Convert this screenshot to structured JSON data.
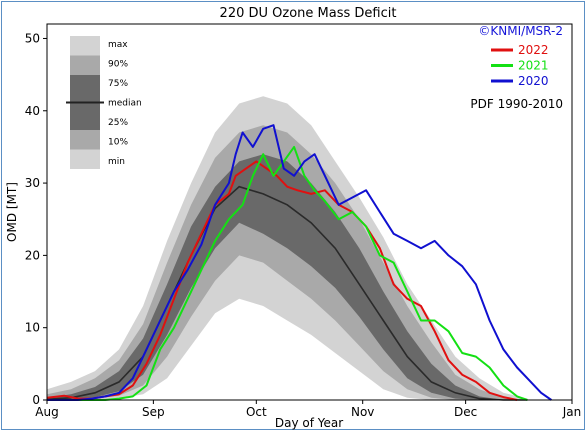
{
  "chart_data": {
    "type": "line",
    "title": "220 DU Ozone Mass Deficit",
    "xlabel": "Day of Year",
    "ylabel": "OMD [MT]",
    "credit": "©KNMI/MSR-2",
    "pdf_label": "PDF 1990-2010",
    "ylim": [
      0,
      52
    ],
    "yticks": [
      0,
      10,
      20,
      30,
      40,
      50
    ],
    "xlim": [
      213,
      366
    ],
    "xticks": [
      {
        "day": 213,
        "label": "Aug"
      },
      {
        "day": 244,
        "label": "Sep"
      },
      {
        "day": 274,
        "label": "Oct"
      },
      {
        "day": 305,
        "label": "Nov"
      },
      {
        "day": 335,
        "label": "Dec"
      },
      {
        "day": 366,
        "label": "Jan"
      }
    ],
    "band_legend": [
      "max",
      "90%",
      "75%",
      "median",
      "25%",
      "10%",
      "min"
    ],
    "bands": {
      "x": [
        213,
        220,
        227,
        234,
        241,
        248,
        255,
        262,
        269,
        276,
        283,
        290,
        297,
        304,
        311,
        318,
        325,
        332,
        339,
        346,
        353
      ],
      "max": [
        1.5,
        2.5,
        4.0,
        7.0,
        13.0,
        22.0,
        30.0,
        37.0,
        41.0,
        42.0,
        41.0,
        38.0,
        33.0,
        28.0,
        22.5,
        16.0,
        11.0,
        6.0,
        3.0,
        1.0,
        0.2
      ],
      "p90": [
        0.8,
        1.5,
        3.0,
        5.5,
        10.5,
        19.0,
        27.0,
        33.5,
        37.0,
        38.0,
        37.0,
        34.0,
        30.0,
        25.0,
        19.0,
        13.0,
        8.0,
        3.5,
        1.5,
        0.3,
        0.0
      ],
      "p75": [
        0.3,
        0.8,
        1.8,
        4.0,
        8.5,
        16.0,
        24.0,
        29.5,
        33.0,
        34.0,
        33.0,
        30.0,
        26.0,
        21.0,
        15.0,
        9.5,
        5.0,
        2.0,
        0.5,
        0.0,
        0.0
      ],
      "median": [
        0.1,
        0.3,
        1.0,
        2.5,
        6.0,
        13.0,
        20.0,
        26.5,
        29.5,
        28.5,
        27.0,
        24.5,
        21.0,
        16.0,
        11.0,
        6.0,
        2.5,
        1.0,
        0.2,
        0.0,
        0.0
      ],
      "p25": [
        0.0,
        0.1,
        0.4,
        1.2,
        3.5,
        9.0,
        15.5,
        21.0,
        24.5,
        23.0,
        21.0,
        18.5,
        15.5,
        11.5,
        7.0,
        3.0,
        1.0,
        0.2,
        0.0,
        0.0,
        0.0
      ],
      "p10": [
        0.0,
        0.0,
        0.2,
        0.6,
        2.0,
        6.0,
        11.5,
        16.5,
        20.0,
        19.0,
        16.5,
        14.0,
        11.0,
        7.5,
        4.0,
        1.5,
        0.3,
        0.0,
        0.0,
        0.0,
        0.0
      ],
      "min": [
        0.0,
        0.0,
        0.0,
        0.2,
        0.8,
        3.0,
        7.5,
        12.0,
        14.0,
        13.0,
        11.0,
        9.0,
        6.5,
        4.0,
        1.5,
        0.3,
        0.0,
        0.0,
        0.0,
        0.0,
        0.0
      ]
    },
    "series": [
      {
        "name": "2022",
        "color": "#e01010",
        "x": [
          213,
          218,
          222,
          226,
          230,
          234,
          238,
          242,
          246,
          250,
          254,
          258,
          262,
          266,
          268,
          271,
          274,
          277,
          280,
          283,
          286,
          290,
          294,
          298,
          302,
          306,
          310,
          314,
          318,
          322,
          326,
          330,
          334,
          338,
          342,
          346,
          350
        ],
        "y": [
          0.3,
          0.6,
          0.2,
          0.2,
          0.5,
          0.8,
          2.0,
          5.0,
          9.0,
          14.0,
          19.0,
          23.0,
          27.0,
          28.5,
          31.0,
          32.0,
          33.0,
          32.0,
          31.0,
          29.5,
          29.0,
          28.5,
          29.0,
          27.0,
          26.0,
          24.0,
          21.0,
          16.0,
          14.0,
          13.0,
          9.5,
          5.5,
          3.5,
          2.5,
          1.0,
          0.4,
          0.0
        ]
      },
      {
        "name": "2021",
        "color": "#14e014",
        "x": [
          213,
          218,
          222,
          226,
          230,
          234,
          238,
          242,
          246,
          250,
          254,
          258,
          262,
          266,
          270,
          273,
          276,
          279,
          282,
          285,
          288,
          291,
          294,
          298,
          302,
          306,
          310,
          314,
          318,
          322,
          326,
          330,
          334,
          338,
          342,
          346,
          350,
          353
        ],
        "y": [
          0.0,
          0.0,
          0.0,
          0.0,
          0.0,
          0.2,
          0.5,
          2.0,
          7.0,
          10.0,
          14.0,
          18.0,
          22.0,
          25.0,
          27.0,
          31.0,
          34.0,
          31.0,
          33.0,
          35.0,
          31.0,
          29.0,
          27.5,
          25.0,
          26.0,
          24.0,
          20.0,
          19.0,
          15.0,
          11.0,
          11.0,
          9.5,
          6.5,
          6.0,
          4.5,
          2.0,
          0.5,
          0.0
        ]
      },
      {
        "name": "2020",
        "color": "#1010d0",
        "x": [
          213,
          218,
          222,
          226,
          230,
          234,
          238,
          242,
          246,
          250,
          254,
          258,
          262,
          266,
          268,
          270,
          273,
          276,
          279,
          282,
          285,
          288,
          291,
          294,
          298,
          302,
          306,
          310,
          314,
          318,
          322,
          326,
          330,
          334,
          338,
          342,
          346,
          350,
          354,
          357,
          360
        ],
        "y": [
          0.0,
          0.0,
          0.0,
          0.2,
          0.5,
          1.0,
          3.0,
          7.0,
          11.0,
          15.0,
          18.0,
          21.5,
          27.0,
          30.0,
          34.0,
          37.0,
          35.0,
          37.5,
          38.0,
          32.0,
          31.0,
          33.0,
          34.0,
          31.0,
          27.0,
          28.0,
          29.0,
          26.0,
          23.0,
          22.0,
          21.0,
          22.0,
          20.0,
          18.5,
          16.0,
          11.0,
          7.0,
          4.5,
          2.5,
          1.0,
          0.0
        ]
      }
    ]
  }
}
